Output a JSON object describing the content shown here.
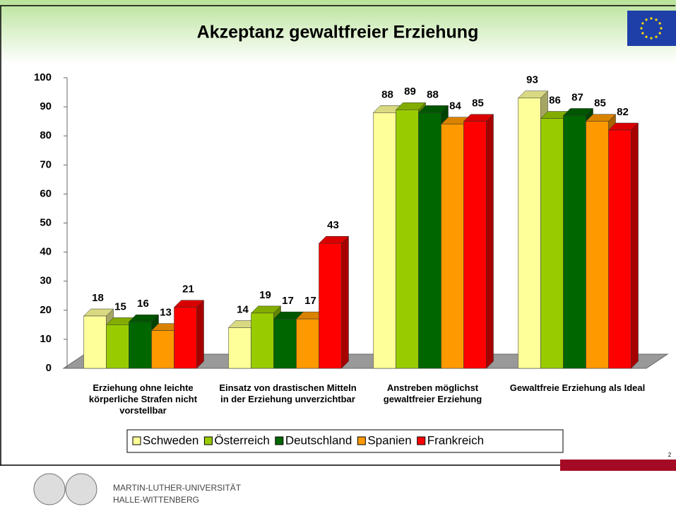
{
  "chart_data": {
    "type": "bar3d",
    "title": "Akzeptanz gewaltfreier Erziehung",
    "categories": [
      "Erziehung ohne leichte körperliche Strafen nicht vorstellbar",
      "Einsatz von drastischen Mitteln in der Erziehung unverzichtbar",
      "Anstreben möglichst gewaltfreier Erziehung",
      "Gewaltfreie Erziehung als Ideal"
    ],
    "series": [
      {
        "name": "Schweden",
        "color": "#ffff99",
        "values": [
          18,
          14,
          88,
          93
        ]
      },
      {
        "name": "Österreich",
        "color": "#99cc00",
        "values": [
          15,
          19,
          89,
          86
        ]
      },
      {
        "name": "Deutschland",
        "color": "#006600",
        "values": [
          16,
          17,
          88,
          87
        ]
      },
      {
        "name": "Spanien",
        "color": "#ff9900",
        "values": [
          13,
          17,
          84,
          85
        ]
      },
      {
        "name": "Frankreich",
        "color": "#ff0000",
        "values": [
          21,
          43,
          85,
          82
        ]
      }
    ],
    "ylim": [
      0,
      100
    ],
    "yticks": [
      0,
      10,
      20,
      30,
      40,
      50,
      60,
      70,
      80,
      90,
      100
    ],
    "grid": false,
    "legend": "bottom"
  },
  "page_number": "2",
  "footer": {
    "line1": "MARTIN-LUTHER-UNIVERSITÄT",
    "line2": "HALLE-WITTENBERG"
  }
}
